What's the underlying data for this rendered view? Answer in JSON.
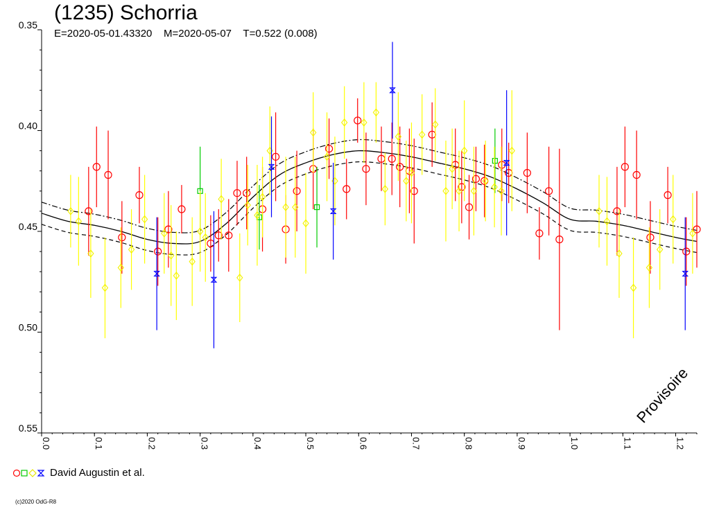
{
  "title": "(1235) Schorria",
  "subtitle": "E=2020-05-01.43320    M=2020-05-07    T=0.522 (0.008)",
  "legend": {
    "label": "David Augustin et al."
  },
  "watermark": "Provisoire",
  "copyright": "(c)2020 OdG-R8",
  "colors": {
    "red": "#ff0000",
    "green": "#00cc00",
    "yellow": "#ffff00",
    "blue": "#0000ff",
    "curve": "#000000"
  },
  "chart_data": {
    "type": "scatter",
    "xlim": [
      0.0,
      1.24
    ],
    "ylim": [
      0.35,
      0.55
    ],
    "y_inverted": true,
    "x_ticks": [
      "0.0",
      "0.1",
      "0.2",
      "0.3",
      "0.4",
      "0.5",
      "0.6",
      "0.7",
      "0.8",
      "0.9",
      "1.0",
      "1.1",
      "1.2"
    ],
    "y_ticks": [
      "0.35",
      "0.40",
      "0.45",
      "0.50",
      "0.55"
    ],
    "series": [
      {
        "color": "red",
        "marker": "circle",
        "points": [
          [
            0.089,
            0.44,
            0.022
          ],
          [
            0.104,
            0.418,
            0.02
          ],
          [
            0.126,
            0.422,
            0.022
          ],
          [
            0.152,
            0.453,
            0.018
          ],
          [
            0.185,
            0.432,
            0.014
          ],
          [
            0.22,
            0.46,
            0.017
          ],
          [
            0.24,
            0.449,
            0.019
          ],
          [
            0.265,
            0.439,
            0.012
          ],
          [
            0.32,
            0.456,
            0.014
          ],
          [
            0.335,
            0.452,
            0.013
          ],
          [
            0.354,
            0.452,
            0.018
          ],
          [
            0.37,
            0.431,
            0.016
          ],
          [
            0.388,
            0.431,
            0.018
          ],
          [
            0.418,
            0.439,
            0.021
          ],
          [
            0.443,
            0.413,
            0.022
          ],
          [
            0.462,
            0.449,
            0.017
          ],
          [
            0.483,
            0.43,
            0.02
          ],
          [
            0.514,
            0.419,
            0.02
          ],
          [
            0.544,
            0.409,
            0.015
          ],
          [
            0.577,
            0.429,
            0.015
          ],
          [
            0.598,
            0.395,
            0.011
          ],
          [
            0.614,
            0.419,
            0.018
          ],
          [
            0.643,
            0.414,
            0.016
          ],
          [
            0.663,
            0.414,
            0.018
          ],
          [
            0.678,
            0.418,
            0.02
          ],
          [
            0.696,
            0.42,
            0.021
          ],
          [
            0.705,
            0.43,
            0.026
          ],
          [
            0.739,
            0.402,
            0.016
          ],
          [
            0.783,
            0.417,
            0.018
          ],
          [
            0.795,
            0.428,
            0.018
          ],
          [
            0.809,
            0.438,
            0.016
          ],
          [
            0.822,
            0.424,
            0.016
          ],
          [
            0.838,
            0.425,
            0.018
          ],
          [
            0.871,
            0.417,
            0.018
          ],
          [
            0.884,
            0.421,
            0.015
          ],
          [
            0.919,
            0.421,
            0.02
          ],
          [
            0.942,
            0.451,
            0.013
          ],
          [
            0.96,
            0.43,
            0.022
          ],
          [
            0.98,
            0.454,
            0.045
          ],
          [
            1.089,
            0.44,
            0.022
          ],
          [
            1.104,
            0.418,
            0.02
          ],
          [
            1.126,
            0.422,
            0.022
          ],
          [
            1.152,
            0.453,
            0.018
          ],
          [
            1.185,
            0.432,
            0.014
          ],
          [
            1.22,
            0.46,
            0.017
          ],
          [
            1.24,
            0.449,
            0.019
          ]
        ]
      },
      {
        "color": "green",
        "marker": "square",
        "points": [
          [
            0.3,
            0.43,
            0.022
          ],
          [
            0.412,
            0.443,
            0.016
          ],
          [
            0.521,
            0.438,
            0.02
          ],
          [
            0.858,
            0.415,
            0.016
          ]
        ]
      },
      {
        "color": "yellow",
        "marker": "diamond",
        "points": [
          [
            0.055,
            0.44,
            0.018
          ],
          [
            0.07,
            0.445,
            0.022
          ],
          [
            0.093,
            0.461,
            0.022
          ],
          [
            0.12,
            0.478,
            0.025
          ],
          [
            0.15,
            0.468,
            0.02
          ],
          [
            0.17,
            0.459,
            0.02
          ],
          [
            0.195,
            0.444,
            0.022
          ],
          [
            0.232,
            0.451,
            0.02
          ],
          [
            0.245,
            0.462,
            0.025
          ],
          [
            0.255,
            0.472,
            0.022
          ],
          [
            0.285,
            0.465,
            0.022
          ],
          [
            0.3,
            0.45,
            0.02
          ],
          [
            0.31,
            0.453,
            0.022
          ],
          [
            0.34,
            0.434,
            0.02
          ],
          [
            0.375,
            0.473,
            0.022
          ],
          [
            0.39,
            0.437,
            0.02
          ],
          [
            0.408,
            0.442,
            0.025
          ],
          [
            0.418,
            0.433,
            0.02
          ],
          [
            0.432,
            0.41,
            0.022
          ],
          [
            0.462,
            0.438,
            0.025
          ],
          [
            0.48,
            0.438,
            0.025
          ],
          [
            0.5,
            0.446,
            0.025
          ],
          [
            0.514,
            0.401,
            0.02
          ],
          [
            0.54,
            0.413,
            0.022
          ],
          [
            0.555,
            0.425,
            0.022
          ],
          [
            0.573,
            0.396,
            0.018
          ],
          [
            0.61,
            0.396,
            0.02
          ],
          [
            0.633,
            0.391,
            0.015
          ],
          [
            0.65,
            0.429,
            0.018
          ],
          [
            0.675,
            0.403,
            0.022
          ],
          [
            0.69,
            0.425,
            0.02
          ],
          [
            0.7,
            0.421,
            0.025
          ],
          [
            0.72,
            0.402,
            0.02
          ],
          [
            0.745,
            0.397,
            0.018
          ],
          [
            0.765,
            0.43,
            0.025
          ],
          [
            0.777,
            0.419,
            0.02
          ],
          [
            0.79,
            0.43,
            0.02
          ],
          [
            0.8,
            0.41,
            0.025
          ],
          [
            0.818,
            0.43,
            0.022
          ],
          [
            0.84,
            0.425,
            0.02
          ],
          [
            0.857,
            0.428,
            0.02
          ],
          [
            0.87,
            0.43,
            0.022
          ],
          [
            0.89,
            0.41,
            0.03
          ],
          [
            1.055,
            0.44,
            0.018
          ],
          [
            1.07,
            0.445,
            0.022
          ],
          [
            1.093,
            0.461,
            0.022
          ],
          [
            1.12,
            0.478,
            0.025
          ],
          [
            1.15,
            0.468,
            0.02
          ],
          [
            1.17,
            0.459,
            0.02
          ],
          [
            1.195,
            0.444,
            0.022
          ],
          [
            1.232,
            0.451,
            0.02
          ],
          [
            1.245,
            0.462,
            0.025
          ]
        ]
      },
      {
        "color": "blue",
        "marker": "hourglass",
        "points": [
          [
            0.218,
            0.471,
            0.028
          ],
          [
            0.326,
            0.474,
            0.034
          ],
          [
            0.435,
            0.418,
            0.025
          ],
          [
            0.552,
            0.44,
            0.024
          ],
          [
            0.664,
            0.38,
            0.024
          ],
          [
            0.88,
            0.416,
            0.036
          ],
          [
            1.218,
            0.471,
            0.028
          ]
        ]
      }
    ],
    "fit_curve": {
      "x": [
        0.0,
        0.05,
        0.1,
        0.15,
        0.2,
        0.25,
        0.3,
        0.35,
        0.4,
        0.45,
        0.5,
        0.55,
        0.6,
        0.65,
        0.7,
        0.75,
        0.8,
        0.85,
        0.9,
        0.95,
        1.0,
        1.05,
        1.1,
        1.15,
        1.2,
        1.24
      ],
      "y": [
        0.441,
        0.445,
        0.447,
        0.45,
        0.454,
        0.456,
        0.455,
        0.446,
        0.433,
        0.422,
        0.416,
        0.412,
        0.41,
        0.411,
        0.413,
        0.416,
        0.419,
        0.423,
        0.429,
        0.436,
        0.444,
        0.445,
        0.447,
        0.45,
        0.453,
        0.455
      ],
      "upper_offset": -0.0055,
      "lower_offset": 0.0055
    }
  }
}
